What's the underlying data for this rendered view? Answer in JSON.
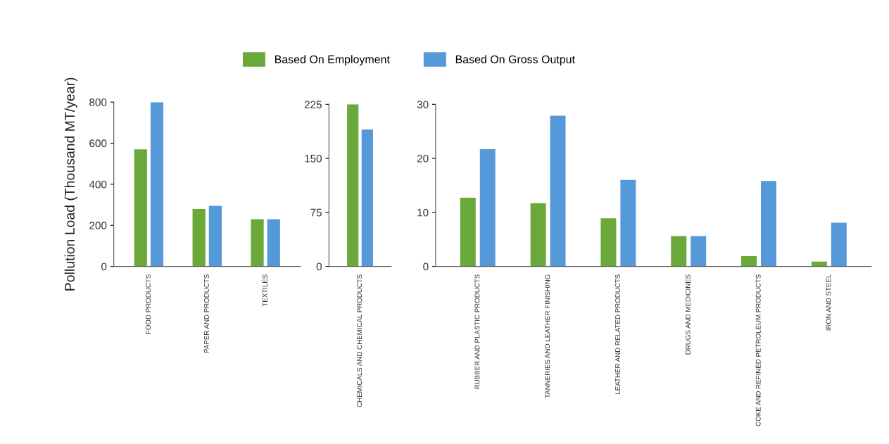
{
  "chart_data": [
    {
      "type": "bar",
      "ylabel": "Pollution Load (Thousand MT/year)",
      "categories": [
        "FOOD PRODUCTS",
        "PAPER AND PRODUCTS",
        "TEXTILES"
      ],
      "ylim": [
        0,
        800
      ],
      "yticks": [
        0,
        200,
        400,
        600,
        800
      ],
      "grid": false,
      "legend": "top",
      "series": [
        {
          "name": "Based On Employment",
          "color": "#6aa83a",
          "values": [
            570,
            280,
            230
          ]
        },
        {
          "name": "Based On Gross Output",
          "color": "#5599d8",
          "values": [
            800,
            295,
            230
          ]
        }
      ]
    },
    {
      "type": "bar",
      "categories": [
        "CHEMICALS AND CHEMICAL PRODUCTS"
      ],
      "ylim": [
        0,
        225
      ],
      "yticks": [
        0,
        75,
        150,
        225
      ],
      "grid": false,
      "series": [
        {
          "color": "#6aa83a",
          "values": [
            225
          ]
        },
        {
          "color": "#5599d8",
          "values": [
            190
          ]
        }
      ]
    },
    {
      "type": "bar",
      "categories": [
        "RUBBER AND PLASTIC PRODUCTS",
        "TANNERIES AND LEATHER FINISHING",
        "LEATHER AND RELATED PRODUCTS",
        "DRUGS AND MEDICINES",
        "COKE AND REFINED PETROLEUM PRODUCTS",
        "IRON AND STEEL"
      ],
      "ylim": [
        0,
        30
      ],
      "yticks": [
        0,
        10,
        20,
        30
      ],
      "grid": false,
      "series": [
        {
          "color": "#6aa83a",
          "values": [
            12.7,
            11.7,
            8.9,
            5.6,
            1.9,
            0.9
          ]
        },
        {
          "color": "#5599d8",
          "values": [
            21.7,
            27.9,
            16.0,
            5.6,
            15.8,
            8.1
          ]
        }
      ]
    }
  ]
}
